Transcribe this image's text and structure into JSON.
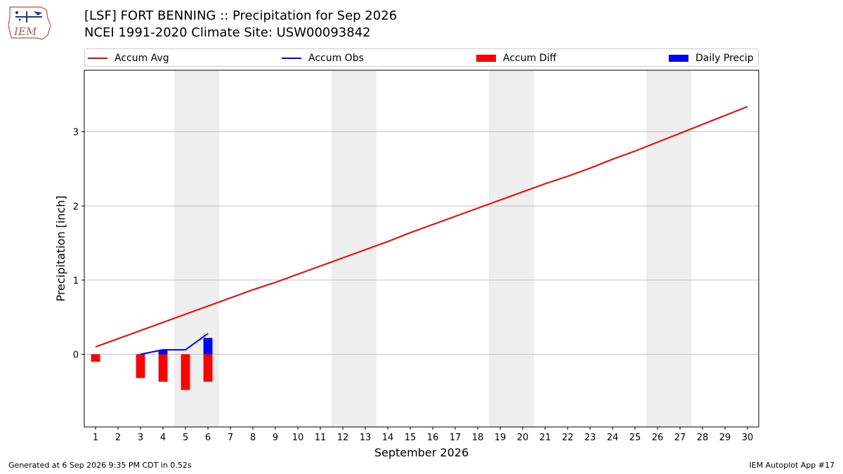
{
  "header": {
    "title": "[LSF] FORT BENNING :: Precipitation for Sep 2026",
    "subtitle": "NCEI 1991-2020 Climate Site: USW00093842",
    "logo_text": "IEM"
  },
  "legend": {
    "items": [
      {
        "label": "Accum Avg",
        "color": "#ff0000",
        "kind": "line"
      },
      {
        "label": "Accum Obs",
        "color": "#0000ff",
        "kind": "line"
      },
      {
        "label": "Accum Diff",
        "color": "#ff0000",
        "kind": "box"
      },
      {
        "label": "Daily Precip",
        "color": "#0000ff",
        "kind": "box"
      }
    ],
    "placement": "top"
  },
  "footer": {
    "left": "Generated at 6 Sep 2026 9:35 PM CDT in 0.52s",
    "right": "IEM Autoplot App #17"
  },
  "chart_data": {
    "type": "line",
    "title": "[LSF] FORT BENNING :: Precipitation for Sep 2026",
    "subtitle": "NCEI 1991-2020 Climate Site: USW00093842",
    "xlabel": "September 2026",
    "ylabel": "Precipitation [inch]",
    "xlim": [
      0.5,
      30.5
    ],
    "ylim": [
      -0.98,
      3.83
    ],
    "yticks": [
      0,
      1,
      2,
      3
    ],
    "grid": "horizontal",
    "x": [
      1,
      2,
      3,
      4,
      5,
      6,
      7,
      8,
      9,
      10,
      11,
      12,
      13,
      14,
      15,
      16,
      17,
      18,
      19,
      20,
      21,
      22,
      23,
      24,
      25,
      26,
      27,
      28,
      29,
      30
    ],
    "weekend_shading": [
      [
        4.5,
        6.5
      ],
      [
        11.5,
        13.5
      ],
      [
        18.5,
        20.5
      ],
      [
        25.5,
        27.5
      ]
    ],
    "series": [
      {
        "name": "Accum Avg",
        "type": "line",
        "color": "#ff0000",
        "x": [
          1,
          2,
          3,
          4,
          5,
          6,
          7,
          8,
          9,
          10,
          11,
          12,
          13,
          14,
          15,
          16,
          17,
          18,
          19,
          20,
          21,
          22,
          23,
          24,
          25,
          26,
          27,
          28,
          29,
          30
        ],
        "values": [
          0.1,
          0.21,
          0.32,
          0.43,
          0.54,
          0.65,
          0.76,
          0.87,
          0.97,
          1.08,
          1.19,
          1.3,
          1.41,
          1.52,
          1.64,
          1.75,
          1.86,
          1.97,
          2.08,
          2.19,
          2.3,
          2.4,
          2.51,
          2.63,
          2.74,
          2.86,
          2.98,
          3.1,
          3.22,
          3.34
        ]
      },
      {
        "name": "Accum Obs",
        "type": "line",
        "color": "#0000ff",
        "x": [
          3,
          4,
          5,
          6
        ],
        "values": [
          0.0,
          0.06,
          0.06,
          0.28
        ]
      },
      {
        "name": "Accum Diff",
        "type": "bar",
        "color": "#ff0000",
        "x": [
          1,
          3,
          4,
          5,
          6
        ],
        "values": [
          -0.1,
          -0.32,
          -0.37,
          -0.48,
          -0.37
        ]
      },
      {
        "name": "Daily Precip",
        "type": "bar",
        "color": "#0000ff",
        "x": [
          4,
          6
        ],
        "values": [
          0.06,
          0.22
        ]
      }
    ]
  }
}
